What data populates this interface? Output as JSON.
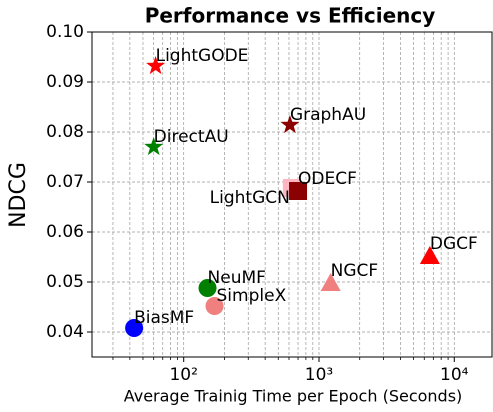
{
  "chart_data": {
    "type": "scatter",
    "title": "Performance vs Efficiency",
    "x_label": "Average Trainig Time per Epoch (Seconds)",
    "y_label": "NDCG",
    "x_log": true,
    "grid": true,
    "xlim": [
      21,
      19000
    ],
    "ylim": [
      0.035,
      0.1
    ],
    "xticks": [
      {
        "value": 100,
        "label": "10²"
      },
      {
        "value": 1000,
        "label": "10³"
      },
      {
        "value": 10000,
        "label": "10⁴"
      }
    ],
    "xminorticks": [
      30,
      40,
      50,
      60,
      70,
      80,
      90,
      200,
      300,
      400,
      500,
      600,
      700,
      800,
      900,
      2000,
      3000,
      4000,
      5000,
      6000,
      7000,
      8000,
      9000
    ],
    "yticks": [
      0.04,
      0.05,
      0.06,
      0.07,
      0.08,
      0.09,
      {
        "value": 0.1,
        "label": "0.10"
      }
    ],
    "points": [
      {
        "name": "BiasMF",
        "x": 43,
        "y": 0.0408,
        "color": "#0000ff",
        "marker": "circle"
      },
      {
        "name": "NeuMF",
        "x": 150,
        "y": 0.0488,
        "color": "#008000",
        "marker": "circle"
      },
      {
        "name": "SimpleX",
        "x": 169,
        "y": 0.0452,
        "color": "#f08080",
        "marker": "circle"
      },
      {
        "name": "LightGCN",
        "x": 630,
        "y": 0.0688,
        "color": "#ffb6c1",
        "marker": "square"
      },
      {
        "name": "ODECF",
        "x": 700,
        "y": 0.0682,
        "color": "#8b0000",
        "marker": "square"
      },
      {
        "name": "GraphAU",
        "x": 610,
        "y": 0.0814,
        "color": "#8b0000",
        "marker": "star"
      },
      {
        "name": "NGCF",
        "x": 1220,
        "y": 0.0498,
        "color": "#f08080",
        "marker": "triangle"
      },
      {
        "name": "DGCF",
        "x": 6600,
        "y": 0.0552,
        "color": "#ff0000",
        "marker": "triangle"
      },
      {
        "name": "LightGODE",
        "x": 62,
        "y": 0.0932,
        "color": "#ff0000",
        "marker": "star"
      },
      {
        "name": "DirectAU",
        "x": 60,
        "y": 0.077,
        "color": "#008000",
        "marker": "star"
      }
    ]
  }
}
